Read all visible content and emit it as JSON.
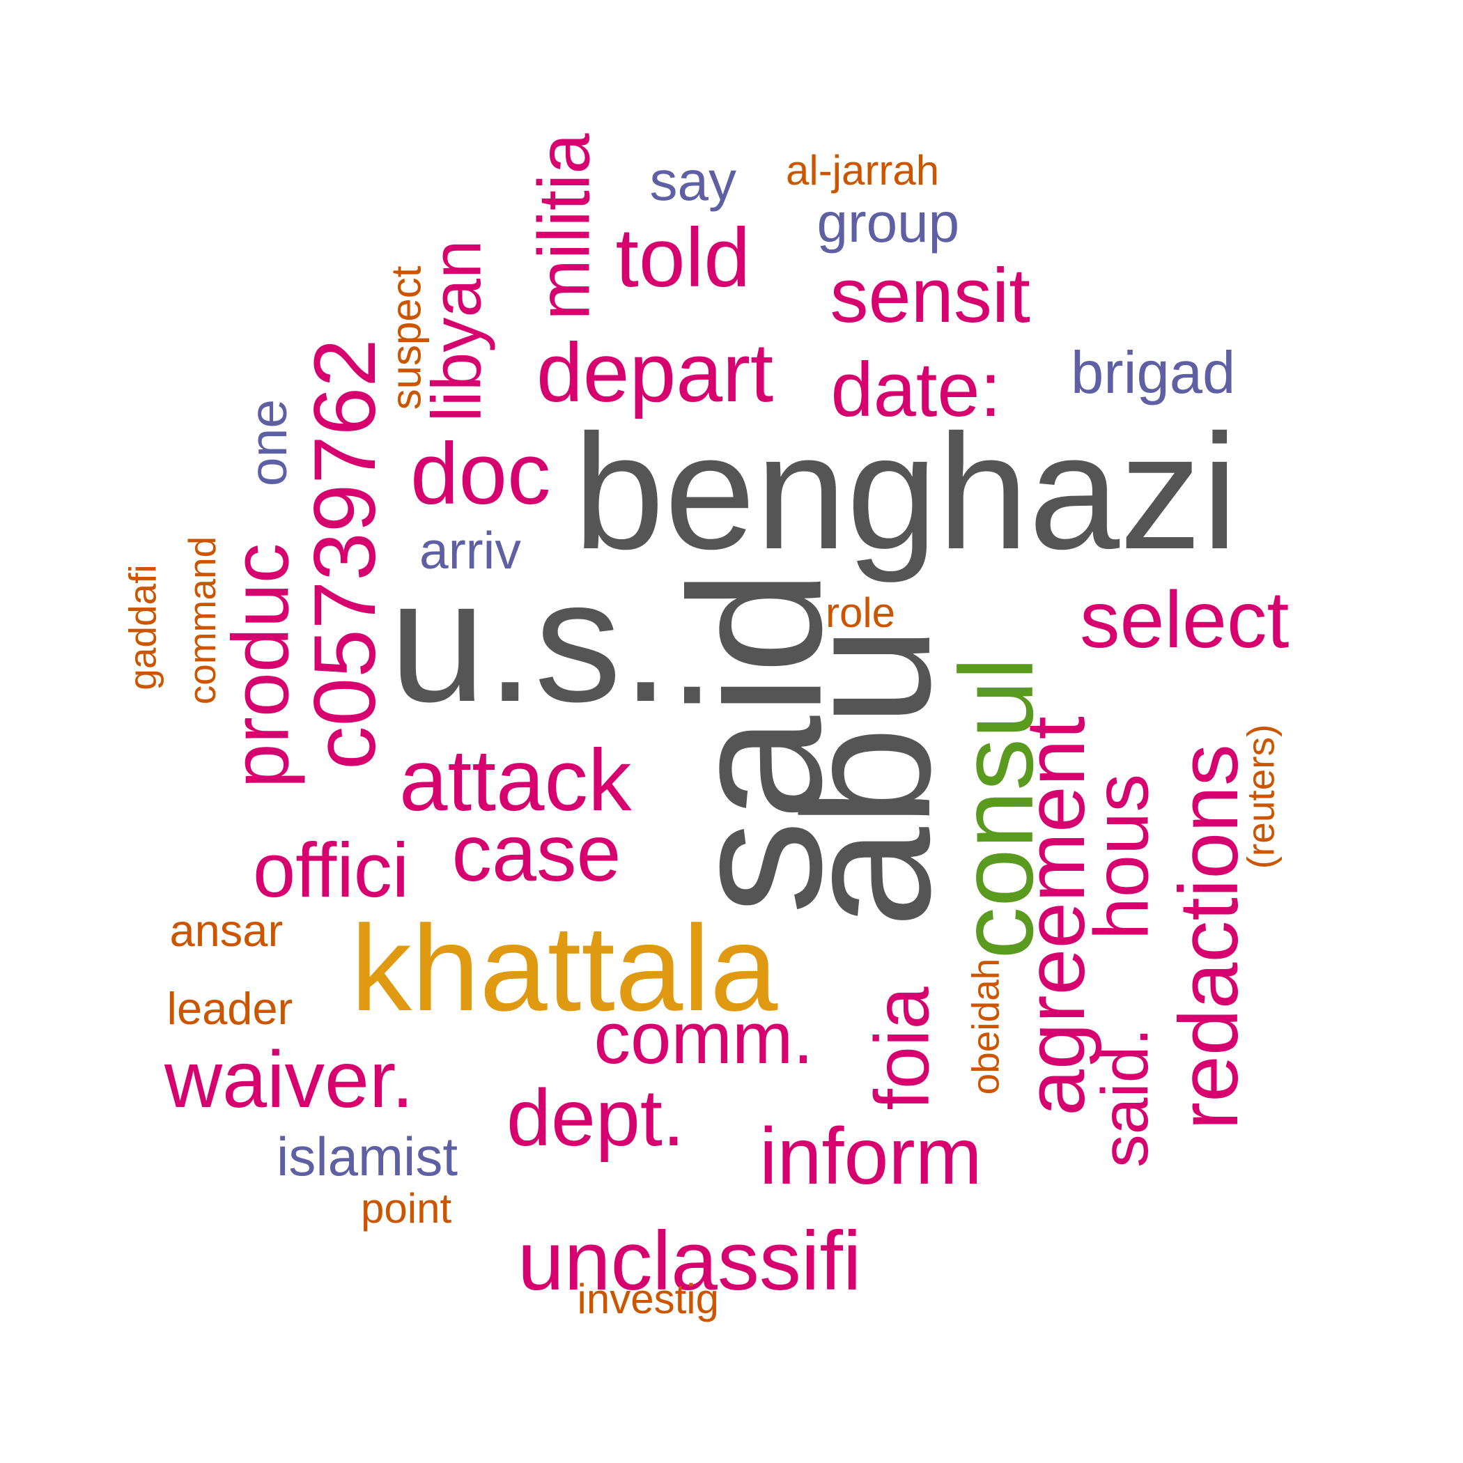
{
  "palette": {
    "gray": "#555555",
    "gold": "#e09a12",
    "green": "#5a9a1f",
    "magenta": "#d6006e",
    "purple": "#5f5fa3",
    "orange": "#cc5500"
  },
  "words": [
    {
      "text": "benghazi",
      "color": "gray",
      "rotated": false
    },
    {
      "text": "u.s.",
      "color": "gray",
      "rotated": false
    },
    {
      "text": "said",
      "color": "gray",
      "rotated": true
    },
    {
      "text": "abu",
      "color": "gray",
      "rotated": true
    },
    {
      "text": "khattala",
      "color": "gold",
      "rotated": false
    },
    {
      "text": "consul",
      "color": "green",
      "rotated": true
    },
    {
      "text": "c05739762",
      "color": "magenta",
      "rotated": true
    },
    {
      "text": "produc",
      "color": "magenta",
      "rotated": true
    },
    {
      "text": "militia",
      "color": "magenta",
      "rotated": true
    },
    {
      "text": "libyan",
      "color": "magenta",
      "rotated": true
    },
    {
      "text": "told",
      "color": "magenta",
      "rotated": false
    },
    {
      "text": "sensit",
      "color": "magenta",
      "rotated": false
    },
    {
      "text": "depart",
      "color": "magenta",
      "rotated": false
    },
    {
      "text": "date:",
      "color": "magenta",
      "rotated": false
    },
    {
      "text": "doc",
      "color": "magenta",
      "rotated": false
    },
    {
      "text": "select",
      "color": "magenta",
      "rotated": false
    },
    {
      "text": "attack",
      "color": "magenta",
      "rotated": false
    },
    {
      "text": "offici",
      "color": "magenta",
      "rotated": false
    },
    {
      "text": "case",
      "color": "magenta",
      "rotated": false
    },
    {
      "text": "agreement",
      "color": "magenta",
      "rotated": true
    },
    {
      "text": "redactions",
      "color": "magenta",
      "rotated": true
    },
    {
      "text": "hous",
      "color": "magenta",
      "rotated": true
    },
    {
      "text": "said.",
      "color": "magenta",
      "rotated": true
    },
    {
      "text": "foia",
      "color": "magenta",
      "rotated": true
    },
    {
      "text": "comm.",
      "color": "magenta",
      "rotated": false
    },
    {
      "text": "waiver.",
      "color": "magenta",
      "rotated": false
    },
    {
      "text": "dept.",
      "color": "magenta",
      "rotated": false
    },
    {
      "text": "inform",
      "color": "magenta",
      "rotated": false
    },
    {
      "text": "unclassifi",
      "color": "magenta",
      "rotated": false
    },
    {
      "text": "say",
      "color": "purple",
      "rotated": false
    },
    {
      "text": "group",
      "color": "purple",
      "rotated": false
    },
    {
      "text": "brigad",
      "color": "purple",
      "rotated": false
    },
    {
      "text": "arriv",
      "color": "purple",
      "rotated": false
    },
    {
      "text": "one",
      "color": "purple",
      "rotated": true
    },
    {
      "text": "islamist",
      "color": "purple",
      "rotated": false
    },
    {
      "text": "al-jarrah",
      "color": "orange",
      "rotated": false
    },
    {
      "text": "suspect",
      "color": "orange",
      "rotated": true
    },
    {
      "text": "gaddafi",
      "color": "orange",
      "rotated": true
    },
    {
      "text": "command",
      "color": "orange",
      "rotated": true
    },
    {
      "text": "role",
      "color": "orange",
      "rotated": false
    },
    {
      "text": "(reuters)",
      "color": "orange",
      "rotated": true
    },
    {
      "text": "ansar",
      "color": "orange",
      "rotated": false
    },
    {
      "text": "leader",
      "color": "orange",
      "rotated": false
    },
    {
      "text": "obeidah",
      "color": "orange",
      "rotated": true
    },
    {
      "text": "point",
      "color": "orange",
      "rotated": false
    },
    {
      "text": "investig",
      "color": "orange",
      "rotated": false
    }
  ]
}
